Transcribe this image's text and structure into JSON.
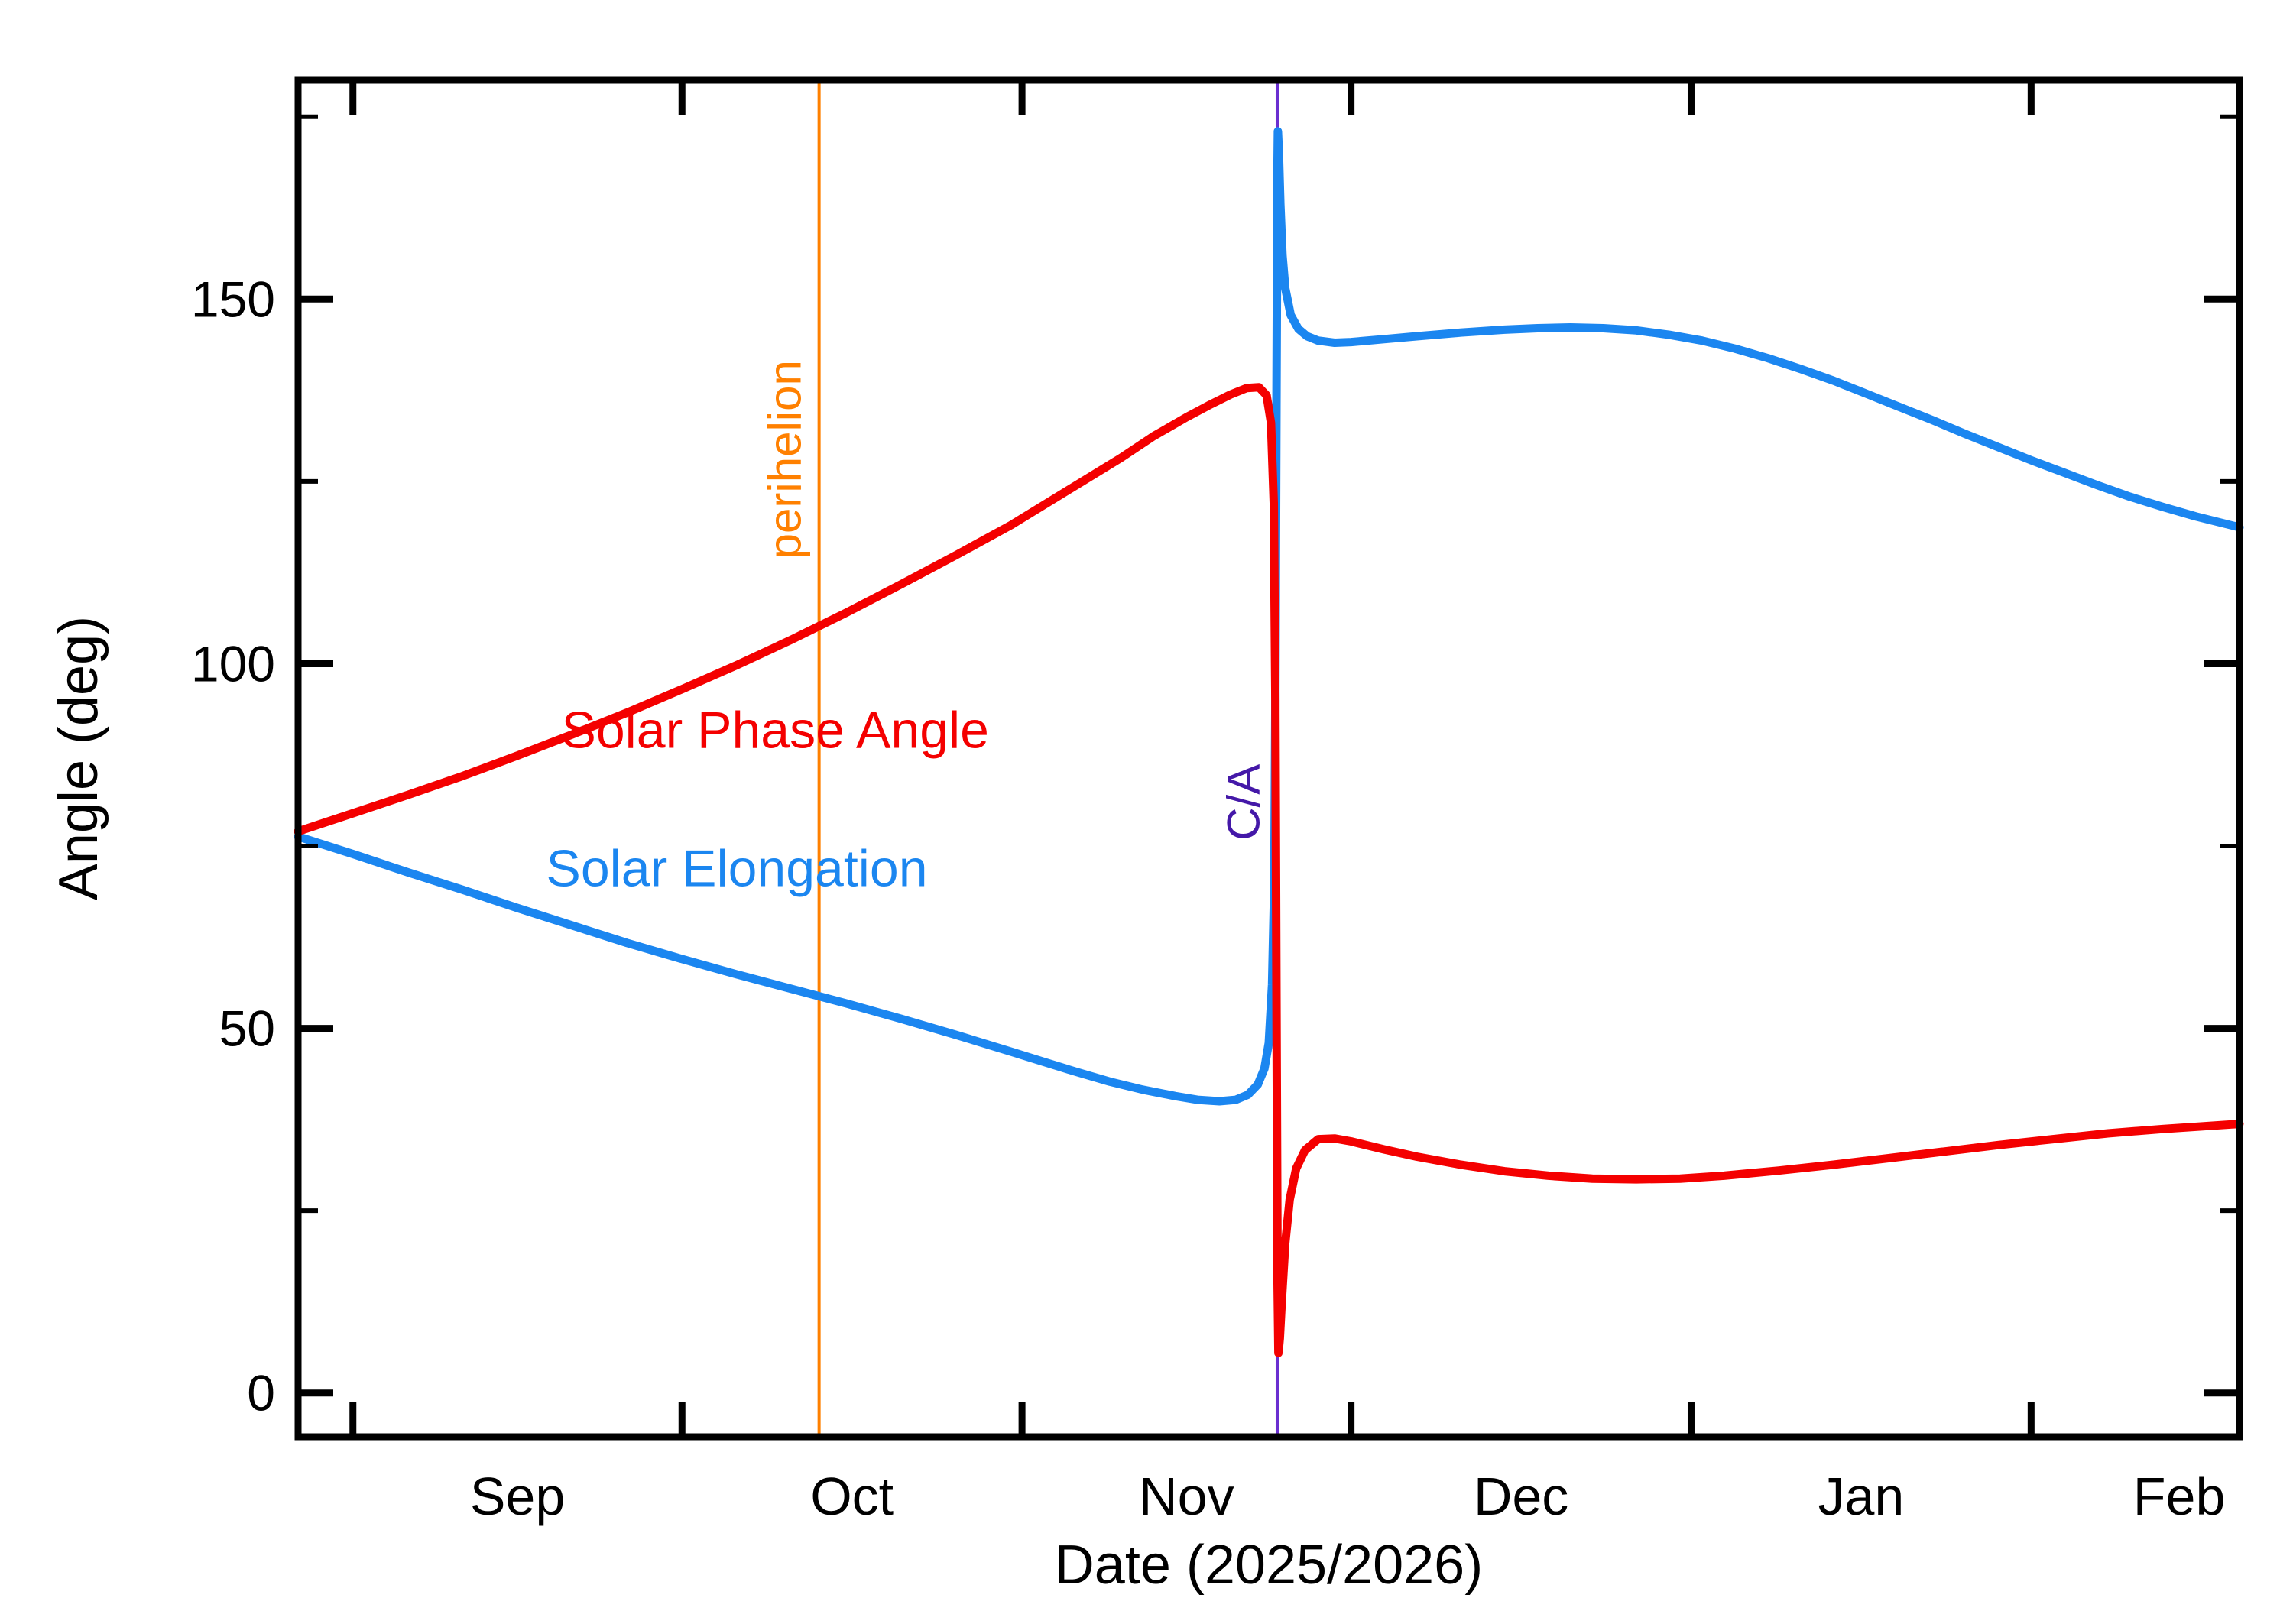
{
  "chart_data": {
    "type": "line",
    "title": "",
    "xlabel": "Date (2025/2026)",
    "ylabel": "Angle (deg)",
    "background_color": "#ffffff",
    "frame_color": "#000000",
    "legend_position": "labels drawn inside plot area near curves",
    "grid": false,
    "x_axis": {
      "unit": "days from left edge of plot (late Aug 2025 through Feb 2026)",
      "xlim": [
        0,
        177
      ],
      "month_ticks": [
        {
          "label": "Sep",
          "tick_day": 5,
          "label_day": 20
        },
        {
          "label": "Oct",
          "tick_day": 35,
          "label_day": 50.5
        },
        {
          "label": "Nov",
          "tick_day": 66,
          "label_day": 81
        },
        {
          "label": "Dec",
          "tick_day": 96,
          "label_day": 111.5
        },
        {
          "label": "Jan",
          "tick_day": 127,
          "label_day": 142.5
        },
        {
          "label": "Feb",
          "tick_day": 158,
          "label_day": 171.5
        }
      ]
    },
    "y_axis": {
      "ylim": [
        -6,
        180
      ],
      "major_ticks": [
        0,
        50,
        100,
        150
      ],
      "minor_ticks": [
        25,
        75,
        125,
        175
      ]
    },
    "events": [
      {
        "id": "perihelion",
        "name": "perihelion",
        "day": 47.5,
        "line_color": "#ff8000",
        "text_color": "#ff8000",
        "label_deg": 128
      },
      {
        "id": "close-approach",
        "name": "C/A",
        "day": 89.3,
        "line_color": "#6a2fd0",
        "text_color": "#4418a8",
        "label_deg": 81
      }
    ],
    "series": [
      {
        "id": "solar-phase-angle",
        "name": "Solar Phase Angle",
        "color": "#f40000",
        "label_pos": [
          43.5,
          91
        ],
        "points": [
          [
            0,
            77
          ],
          [
            5,
            79.5
          ],
          [
            10,
            82
          ],
          [
            15,
            84.6
          ],
          [
            20,
            87.4
          ],
          [
            25,
            90.3
          ],
          [
            30,
            93.3
          ],
          [
            35,
            96.5
          ],
          [
            40,
            99.8
          ],
          [
            45,
            103.3
          ],
          [
            50,
            107
          ],
          [
            55,
            110.9
          ],
          [
            60,
            114.9
          ],
          [
            65,
            119
          ],
          [
            70,
            123.6
          ],
          [
            75,
            128.2
          ],
          [
            78,
            131.2
          ],
          [
            81,
            133.8
          ],
          [
            83,
            135.4
          ],
          [
            85,
            136.9
          ],
          [
            86.5,
            137.8
          ],
          [
            87.6,
            137.9
          ],
          [
            88.3,
            136.8
          ],
          [
            88.7,
            133
          ],
          [
            88.95,
            122
          ],
          [
            89.1,
            95
          ],
          [
            89.2,
            55
          ],
          [
            89.3,
            15
          ],
          [
            89.38,
            5.5
          ],
          [
            89.5,
            7.5
          ],
          [
            89.7,
            13
          ],
          [
            90,
            20.5
          ],
          [
            90.4,
            26.5
          ],
          [
            91,
            30.8
          ],
          [
            91.8,
            33.3
          ],
          [
            93,
            34.8
          ],
          [
            94.5,
            34.9
          ],
          [
            96,
            34.5
          ],
          [
            99,
            33.4
          ],
          [
            102,
            32.4
          ],
          [
            106,
            31.3
          ],
          [
            110,
            30.4
          ],
          [
            114,
            29.8
          ],
          [
            118,
            29.4
          ],
          [
            122,
            29.3
          ],
          [
            126,
            29.4
          ],
          [
            130,
            29.8
          ],
          [
            135,
            30.5
          ],
          [
            140,
            31.3
          ],
          [
            145,
            32.2
          ],
          [
            150,
            33.1
          ],
          [
            155,
            34
          ],
          [
            160,
            34.8
          ],
          [
            165,
            35.6
          ],
          [
            170,
            36.2
          ],
          [
            177,
            36.9
          ]
        ]
      },
      {
        "id": "solar-elongation",
        "name": "Solar Elongation",
        "color": "#1b86f0",
        "label_pos": [
          40,
          72
        ],
        "points": [
          [
            0,
            76.3
          ],
          [
            5,
            73.9
          ],
          [
            10,
            71.4
          ],
          [
            15,
            69
          ],
          [
            20,
            66.5
          ],
          [
            25,
            64.1
          ],
          [
            30,
            61.7
          ],
          [
            35,
            59.5
          ],
          [
            40,
            57.4
          ],
          [
            45,
            55.4
          ],
          [
            50,
            53.4
          ],
          [
            55,
            51.3
          ],
          [
            60,
            49.1
          ],
          [
            65,
            46.8
          ],
          [
            68,
            45.4
          ],
          [
            71,
            44
          ],
          [
            74,
            42.7
          ],
          [
            77,
            41.6
          ],
          [
            80,
            40.7
          ],
          [
            82,
            40.2
          ],
          [
            84,
            40
          ],
          [
            85.5,
            40.2
          ],
          [
            86.6,
            40.9
          ],
          [
            87.5,
            42.3
          ],
          [
            88.1,
            44.5
          ],
          [
            88.5,
            48
          ],
          [
            88.8,
            56
          ],
          [
            89,
            70
          ],
          [
            89.1,
            95
          ],
          [
            89.2,
            135
          ],
          [
            89.28,
            166
          ],
          [
            89.33,
            173
          ],
          [
            89.42,
            170
          ],
          [
            89.55,
            163
          ],
          [
            89.75,
            156
          ],
          [
            90,
            151.5
          ],
          [
            90.5,
            147.8
          ],
          [
            91.2,
            145.9
          ],
          [
            92,
            144.9
          ],
          [
            93,
            144.3
          ],
          [
            94.5,
            144
          ],
          [
            96,
            144.1
          ],
          [
            99,
            144.5
          ],
          [
            102,
            144.9
          ],
          [
            106,
            145.4
          ],
          [
            110,
            145.8
          ],
          [
            113,
            146
          ],
          [
            116,
            146.1
          ],
          [
            119,
            146
          ],
          [
            122,
            145.7
          ],
          [
            125,
            145.1
          ],
          [
            128,
            144.3
          ],
          [
            131,
            143.2
          ],
          [
            134,
            141.9
          ],
          [
            137,
            140.4
          ],
          [
            140,
            138.8
          ],
          [
            143,
            137
          ],
          [
            146,
            135.2
          ],
          [
            149,
            133.4
          ],
          [
            152,
            131.5
          ],
          [
            155,
            129.7
          ],
          [
            158,
            127.9
          ],
          [
            161,
            126.2
          ],
          [
            164,
            124.5
          ],
          [
            167,
            122.9
          ],
          [
            170,
            121.5
          ],
          [
            173,
            120.2
          ],
          [
            177,
            118.7
          ]
        ]
      }
    ]
  }
}
